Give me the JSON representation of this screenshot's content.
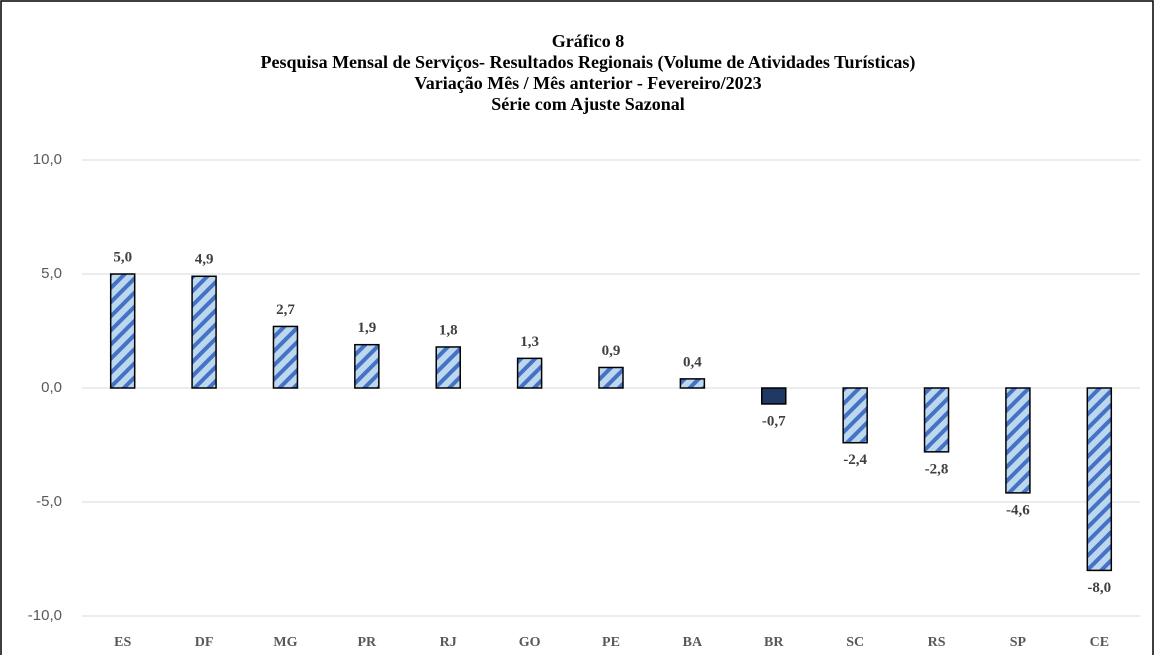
{
  "chart_data": {
    "type": "bar",
    "title": [
      "Gráfico 8",
      "Pesquisa Mensal de Serviços- Resultados Regionais (Volume de Atividades Turísticas)",
      "Variação Mês / Mês anterior - Fevereiro/2023",
      "Série com Ajuste Sazonal"
    ],
    "categories": [
      "ES",
      "DF",
      "MG",
      "PR",
      "RJ",
      "GO",
      "PE",
      "BA",
      "BR",
      "SC",
      "RS",
      "SP",
      "CE"
    ],
    "values": [
      5.0,
      4.9,
      2.7,
      1.9,
      1.8,
      1.3,
      0.9,
      0.4,
      -0.7,
      -2.4,
      -2.8,
      -4.6,
      -8.0
    ],
    "value_labels": [
      "5,0",
      "4,9",
      "2,7",
      "1,9",
      "1,8",
      "1,3",
      "0,9",
      "0,4",
      "-0,7",
      "-2,4",
      "-2,8",
      "-4,6",
      "-8,0"
    ],
    "colors": [
      "#bdd7ee",
      "#bdd7ee",
      "#bdd7ee",
      "#bdd7ee",
      "#bdd7ee",
      "#bdd7ee",
      "#bdd7ee",
      "#bdd7ee",
      "#1f3864",
      "#bdd7ee",
      "#bdd7ee",
      "#bdd7ee",
      "#bdd7ee"
    ],
    "hatched": [
      true,
      true,
      true,
      true,
      true,
      true,
      true,
      true,
      false,
      true,
      true,
      true,
      true
    ],
    "ylim": [
      -10,
      10
    ],
    "yticks": [
      {
        "value": -10,
        "label": "-10,0"
      },
      {
        "value": -5,
        "label": "-5,0"
      },
      {
        "value": 0,
        "label": "0,0"
      },
      {
        "value": 5,
        "label": "5,0"
      },
      {
        "value": 10,
        "label": "10,0"
      }
    ],
    "grid": true
  }
}
